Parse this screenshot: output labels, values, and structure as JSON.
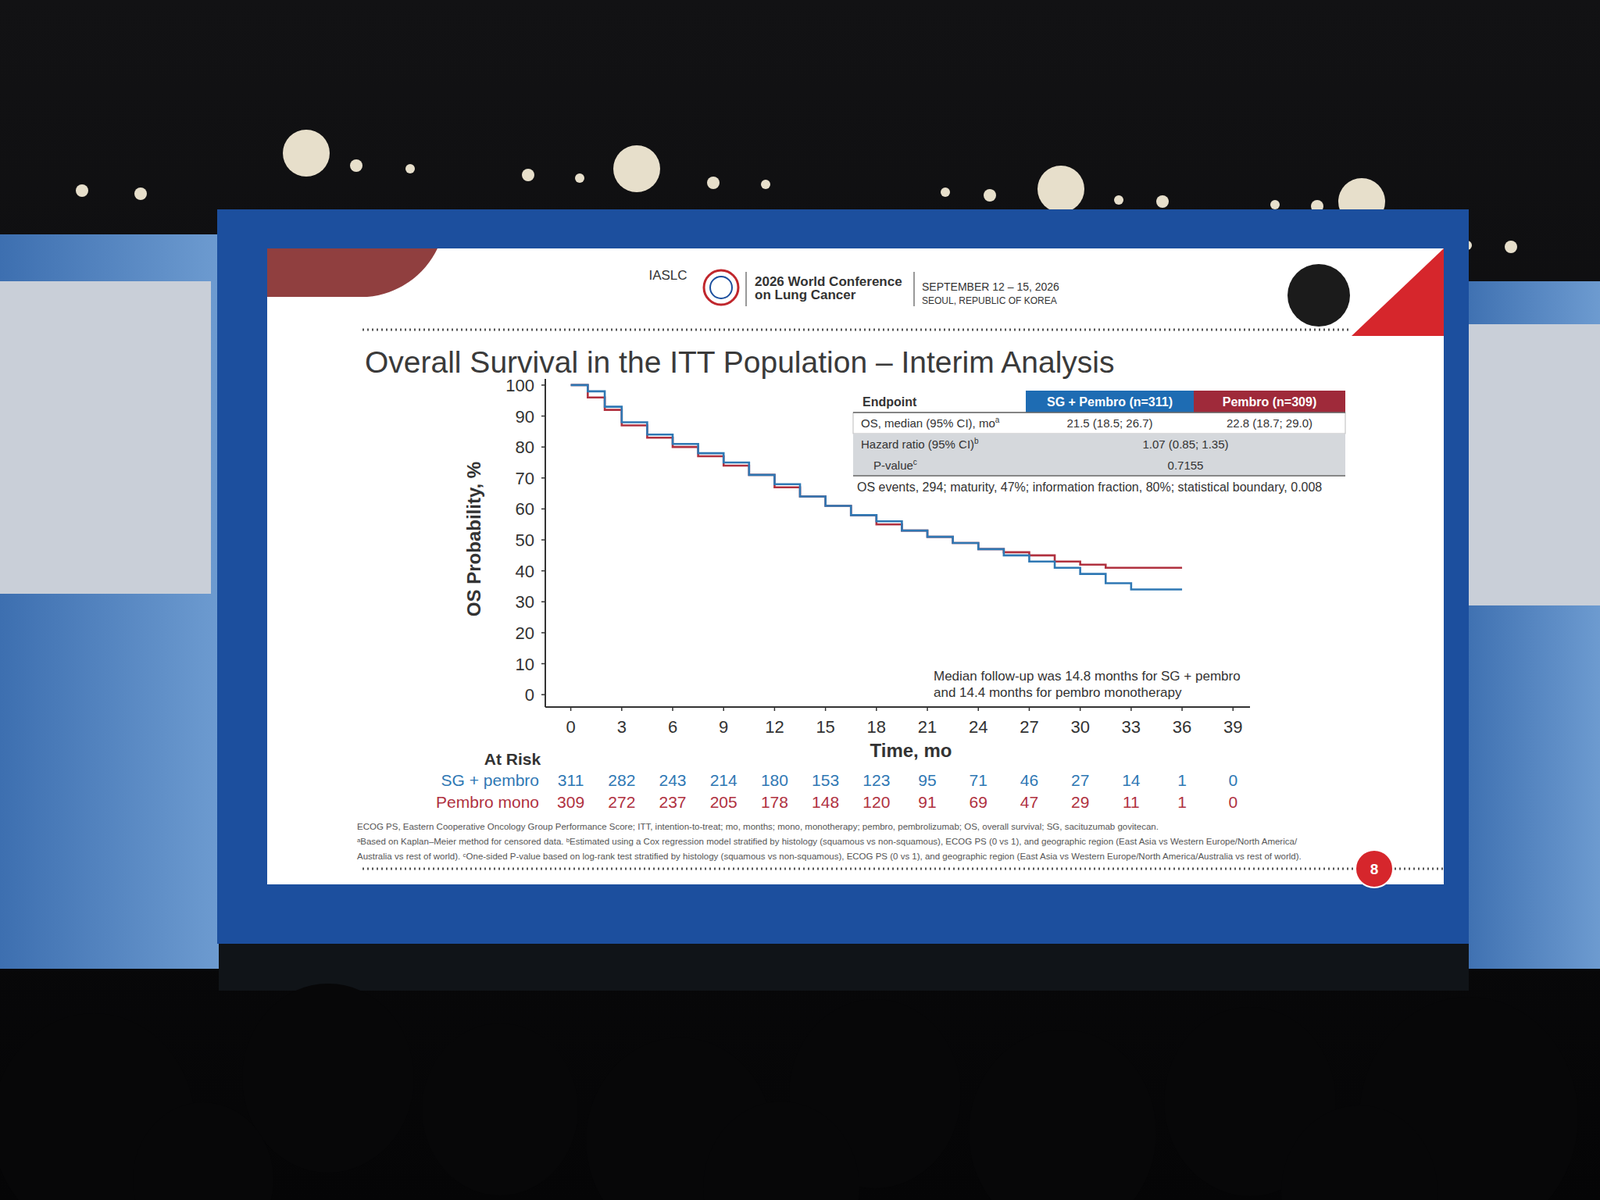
{
  "header": {
    "org": "IASLC",
    "conference": [
      "2026 World Conference",
      "on Lung Cancer"
    ],
    "dates": "SEPTEMBER 12 – 15, 2026",
    "location": "SEOUL, REPUBLIC OF KOREA"
  },
  "chart_data": {
    "type": "line",
    "line_style": "step",
    "grid": false,
    "title": "Overall  Survival in the ITT Population – Interim Analysis",
    "x_label": "Time, mo",
    "y_label": "OS Probability, %",
    "x": [
      0,
      1,
      2,
      3,
      4.5,
      6,
      7.5,
      9,
      10.5,
      12,
      13.5,
      15,
      16.5,
      18,
      19.5,
      21,
      22.5,
      24,
      25.5,
      27,
      28.5,
      30,
      31.5,
      33,
      34.5,
      36
    ],
    "xlim": [
      -1.5,
      40
    ],
    "xticks": [
      0,
      3,
      6,
      9,
      12,
      15,
      18,
      21,
      24,
      27,
      30,
      33,
      36,
      39
    ],
    "ylim": [
      -4,
      102
    ],
    "yticks": [
      0,
      10,
      20,
      30,
      40,
      50,
      60,
      70,
      80,
      90,
      100
    ],
    "series": [
      {
        "name": "SG + pembro",
        "color": "#2f78b4",
        "values": [
          100,
          98,
          93,
          88,
          84,
          81,
          78,
          75,
          71,
          68,
          64,
          61,
          58,
          56,
          53,
          51,
          49,
          47,
          45,
          43,
          41,
          39,
          36,
          34,
          34,
          34
        ],
        "at_risk": [
          311,
          282,
          243,
          214,
          180,
          153,
          123,
          95,
          71,
          46,
          27,
          14,
          1,
          0
        ]
      },
      {
        "name": "Pembro mono",
        "color": "#b0313f",
        "values": [
          100,
          96,
          92,
          87,
          83,
          80,
          77,
          74,
          71,
          67,
          64,
          61,
          58,
          55,
          53,
          51,
          49,
          47,
          46,
          45,
          43,
          42,
          41,
          41,
          41,
          41
        ],
        "at_risk": [
          309,
          272,
          237,
          205,
          178,
          148,
          120,
          91,
          69,
          47,
          29,
          11,
          1,
          0
        ]
      }
    ],
    "at_risk_label": "At Risk",
    "annotations": [
      "Median follow-up was 14.8 months for SG + pembro",
      "and 14.4 months for pembro monotherapy"
    ]
  },
  "table": {
    "columns": [
      "Endpoint",
      "SG + Pembro (n=311)",
      "Pembro (n=309)"
    ],
    "rows": [
      {
        "label": "OS, median (95% CI), mo",
        "sup": "a",
        "cells": [
          "21.5 (18.5; 26.7)",
          "22.8 (18.7; 29.0)"
        ]
      },
      {
        "label": "Hazard ratio (95% CI)",
        "sup": "b",
        "cells": [
          "1.07 (0.85; 1.35)"
        ]
      },
      {
        "label": "P-value",
        "sup": "c",
        "cells": [
          "0.7155"
        ]
      }
    ],
    "note": "OS events, 294; maturity, 47%; information fraction, 80%; statistical boundary, 0.008"
  },
  "footnotes": [
    "ECOG PS, Eastern Cooperative Oncology Group Performance Score; ITT, intention-to-treat; mo, months; mono, monotherapy; pembro, pembrolizumab; OS, overall survival; SG, sacituzumab govitecan.",
    "ᵃBased on Kaplan–Meier method  for censored data. ᵇEstimated using a Cox regression model stratified by histology (squamous vs non-squamous), ECOG PS (0 vs 1), and geographic region (East Asia vs Western Europe/North America/",
    "Australia vs rest of world). ᶜOne-sided P-value based on log-rank test stratified by histology (squamous vs non-squamous), ECOG PS (0 vs 1), and geographic region (East Asia vs Western Europe/North America/Australia vs rest of world)."
  ],
  "page_number": "8"
}
